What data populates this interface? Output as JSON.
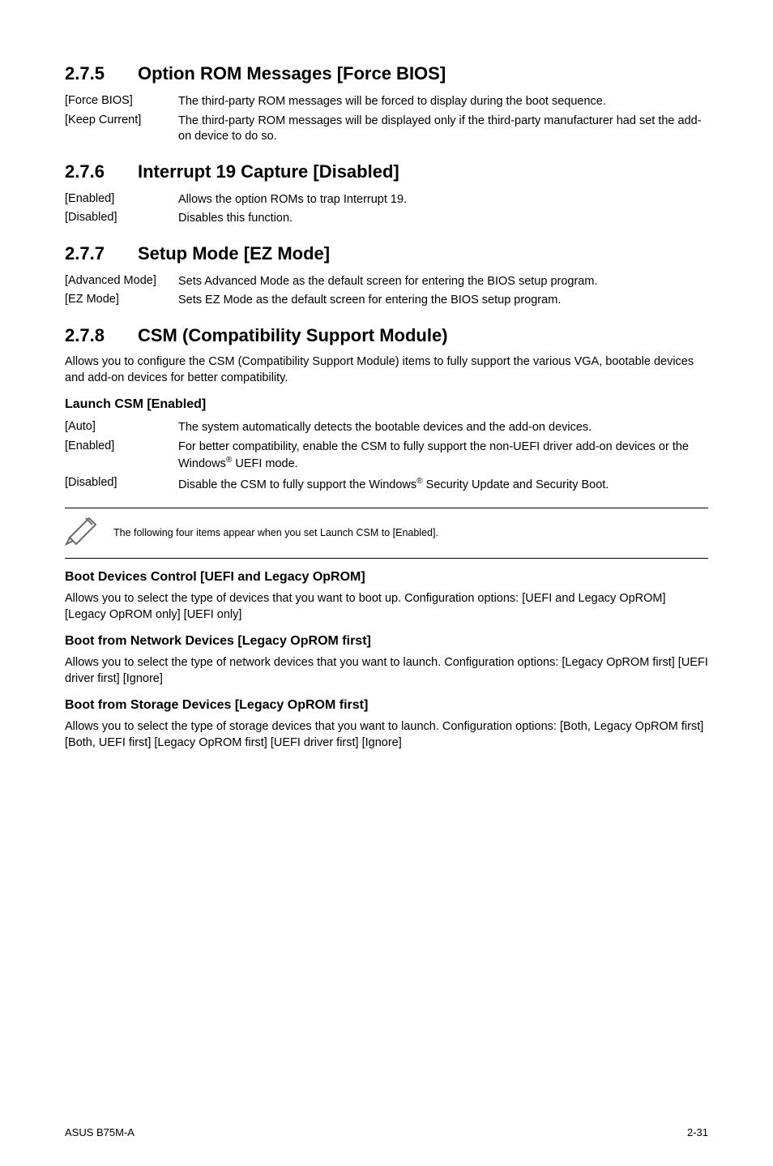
{
  "sections": [
    {
      "num": "2.7.5",
      "title": "Option ROM Messages [Force BIOS]",
      "opts": [
        {
          "k": "[Force BIOS]",
          "v": "The third-party ROM messages will be forced to display during the boot sequence."
        },
        {
          "k": "[Keep Current]",
          "v": "The third-party ROM messages will be displayed only if the third-party manufacturer had set the add-on device to do so."
        }
      ]
    },
    {
      "num": "2.7.6",
      "title": "Interrupt 19 Capture [Disabled]",
      "opts": [
        {
          "k": "[Enabled]",
          "v": "Allows the option ROMs to trap Interrupt 19."
        },
        {
          "k": "[Disabled]",
          "v": "Disables this function."
        }
      ]
    },
    {
      "num": "2.7.7",
      "title": "Setup Mode [EZ Mode]",
      "opts": [
        {
          "k": "[Advanced Mode]",
          "v": "Sets Advanced Mode as the default screen for entering the BIOS setup program."
        },
        {
          "k": "[EZ Mode]",
          "v": "Sets EZ Mode as the default screen for entering the BIOS setup program."
        }
      ]
    }
  ],
  "csm": {
    "num": "2.7.8",
    "title": "CSM (Compatibility Support Module)",
    "desc": "Allows you to configure the CSM (Compatibility Support Module) items to fully support the various VGA, bootable devices and add-on devices for better compatibility.",
    "launch": {
      "heading": "Launch CSM [Enabled]",
      "opts": [
        {
          "k": "[Auto]",
          "v": "The system automatically detects the bootable devices and the add-on devices."
        },
        {
          "k": "[Enabled]",
          "v_html": "For better compatibility, enable the CSM to fully support the non-UEFI driver add-on devices or the Windows<span class=\"sup\">®</span> UEFI mode."
        },
        {
          "k": "[Disabled]",
          "v_html": "Disable the CSM to fully support the Windows<span class=\"sup\">®</span> Security Update and Security Boot."
        }
      ]
    },
    "note": "The following four items appear when you set Launch CSM to [Enabled].",
    "subs": [
      {
        "heading": "Boot Devices Control [UEFI and Legacy OpROM]",
        "desc": "Allows you to select the type of devices that you want to boot up. Configuration options: [UEFI and Legacy OpROM] [Legacy OpROM only] [UEFI only]"
      },
      {
        "heading": "Boot from Network Devices [Legacy OpROM first]",
        "desc": "Allows you to select the type of network devices that you want to launch. Configuration options: [Legacy OpROM first] [UEFI driver first] [Ignore]"
      },
      {
        "heading": "Boot from Storage Devices [Legacy OpROM first]",
        "desc": "Allows you to select the type of storage devices that you want to launch. Configuration options: [Both, Legacy OpROM first] [Both, UEFI first] [Legacy OpROM first] [UEFI driver first] [Ignore]"
      }
    ]
  },
  "footer": {
    "left": "ASUS B75M-A",
    "right": "2-31"
  },
  "icon_stroke": "#6b6b6b"
}
